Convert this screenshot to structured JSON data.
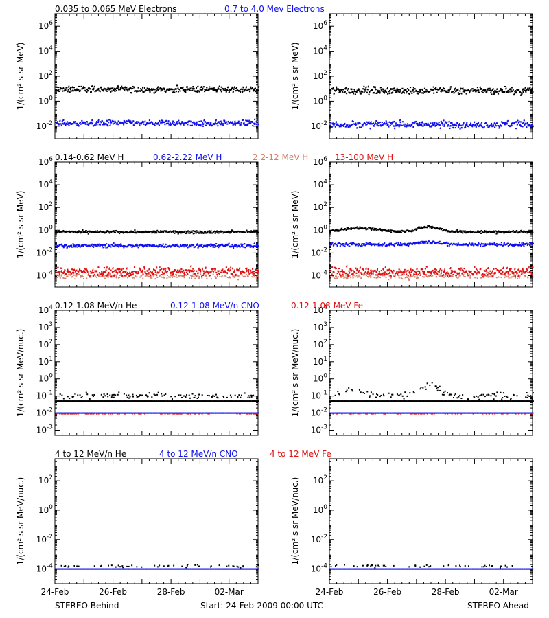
{
  "colors": {
    "black": "#000000",
    "blue": "#1010ee",
    "salmon": "#d4826a",
    "red": "#e01010"
  },
  "panels": [
    {
      "legend": [
        {
          "text": "0.035 to 0.065 MeV Electrons",
          "color": "black"
        },
        {
          "text": "0.7 to 4.0 Mev Electrons",
          "color": "blue"
        }
      ],
      "ylabel": "1/(cm² s sr MeV)",
      "ylim_log10": [
        -3,
        7
      ],
      "ytick_exponents": [
        -2,
        0,
        2,
        4,
        6
      ],
      "ytick_labels": [
        "10-2",
        "100",
        "102",
        "104",
        "106"
      ],
      "ytick_style": "superscript"
    },
    {
      "legend": [
        {
          "text": "0.14-0.62 MeV H",
          "color": "black"
        },
        {
          "text": "0.62-2.22 MeV H",
          "color": "blue"
        },
        {
          "text": "2.2-12 MeV H",
          "color": "salmon"
        },
        {
          "text": "13-100 MeV H",
          "color": "red"
        }
      ],
      "ylabel": "1/(cm² s sr MeV)",
      "ylim_log10": [
        -5,
        6
      ],
      "ytick_exponents": [
        -4,
        -2,
        0,
        2,
        4,
        6
      ],
      "ytick_labels": [
        "10-4",
        "10-2",
        "100",
        "102",
        "104",
        "106"
      ],
      "ytick_style": "superscript"
    },
    {
      "legend": [
        {
          "text": "0.12-1.08 MeV/n He",
          "color": "black"
        },
        {
          "text": "0.12-1.08 MeV/n CNO",
          "color": "blue"
        },
        {
          "text": "0.12-1.08 MeV Fe",
          "color": "red"
        }
      ],
      "ylabel": "1/(cm² s sr MeV/nuc.)",
      "ylim_log10": [
        -3.3,
        4
      ],
      "ytick_exponents": [
        -3,
        -2,
        -1,
        0,
        1,
        2,
        3,
        4
      ],
      "ytick_labels": [
        "10-3",
        "10-2",
        "10-1",
        "100",
        "101",
        "102",
        "103",
        "104"
      ],
      "ytick_style": "superscript"
    },
    {
      "legend": [
        {
          "text": "4 to 12 MeV/n He",
          "color": "black"
        },
        {
          "text": "4 to 12 MeV/n CNO",
          "color": "blue"
        },
        {
          "text": "4 to 12 MeV Fe",
          "color": "red"
        }
      ],
      "ylabel": "1/(cm² s sr MeV/nuc.)",
      "ylim_log10": [
        -5,
        3.5
      ],
      "ytick_exponents": [
        -4,
        -2,
        0,
        2
      ],
      "ytick_labels": [
        "10-4",
        "10-2",
        "100",
        "102"
      ],
      "ytick_style": "superscript"
    }
  ],
  "chart_data": {
    "type": "scatter",
    "x_axis": {
      "type": "date",
      "range": [
        "2009-02-24",
        "2009-03-03"
      ],
      "ticks": [
        "24-Feb",
        "26-Feb",
        "28-Feb",
        "02-Mar"
      ],
      "tick_dates": [
        "2009-02-24",
        "2009-02-26",
        "2009-02-28",
        "2009-03-02"
      ]
    },
    "y_scale": "log",
    "columns": [
      "STEREO Behind",
      "STEREO Ahead"
    ],
    "series": [
      {
        "panel": 0,
        "column": 0,
        "color": "black",
        "baseline_log10": 1.0,
        "scatter": 0.12,
        "density": 1.0
      },
      {
        "panel": 0,
        "column": 0,
        "color": "blue",
        "baseline_log10": -1.7,
        "scatter": 0.12,
        "density": 1.0
      },
      {
        "panel": 0,
        "column": 1,
        "color": "black",
        "baseline_log10": 0.9,
        "scatter": 0.14,
        "density": 1.0
      },
      {
        "panel": 0,
        "column": 1,
        "color": "blue",
        "baseline_log10": -1.8,
        "scatter": 0.14,
        "density": 1.0
      },
      {
        "panel": 1,
        "column": 0,
        "color": "black",
        "baseline_log10": -0.1,
        "scatter": 0.06,
        "density": 1.0
      },
      {
        "panel": 1,
        "column": 0,
        "color": "blue",
        "baseline_log10": -1.3,
        "scatter": 0.08,
        "density": 1.0
      },
      {
        "panel": 1,
        "column": 0,
        "color": "salmon",
        "baseline_log10": -4.0,
        "scatter": 0.12,
        "density": 0.6
      },
      {
        "panel": 1,
        "column": 0,
        "color": "red",
        "baseline_log10": -3.6,
        "scatter": 0.18,
        "density": 1.0
      },
      {
        "panel": 1,
        "column": 1,
        "color": "black",
        "baseline_log10": -0.1,
        "scatter": 0.06,
        "density": 1.0,
        "bumps": [
          {
            "day": 1.0,
            "width": 0.9,
            "height": 0.35
          },
          {
            "day": 3.4,
            "width": 0.55,
            "height": 0.45
          }
        ]
      },
      {
        "panel": 1,
        "column": 1,
        "color": "blue",
        "baseline_log10": -1.2,
        "scatter": 0.07,
        "density": 1.0,
        "bumps": [
          {
            "day": 3.4,
            "width": 0.6,
            "height": 0.2
          }
        ]
      },
      {
        "panel": 1,
        "column": 1,
        "color": "salmon",
        "baseline_log10": -4.0,
        "scatter": 0.12,
        "density": 0.6
      },
      {
        "panel": 1,
        "column": 1,
        "color": "red",
        "baseline_log10": -3.6,
        "scatter": 0.18,
        "density": 1.0
      },
      {
        "panel": 2,
        "column": 0,
        "color": "black",
        "baseline_log10": -1.3,
        "scatter": 0.0,
        "density": 1.0,
        "style": "line"
      },
      {
        "panel": 2,
        "column": 0,
        "color": "black",
        "baseline_log10": -0.95,
        "scatter": 0.08,
        "density": 0.35
      },
      {
        "panel": 2,
        "column": 0,
        "color": "blue",
        "baseline_log10": -2.0,
        "scatter": 0.0,
        "density": 1.0,
        "style": "line"
      },
      {
        "panel": 2,
        "column": 0,
        "color": "red",
        "baseline_log10": -2.0,
        "scatter": 0.0,
        "density": 0.25
      },
      {
        "panel": 2,
        "column": 1,
        "color": "black",
        "baseline_log10": -1.3,
        "scatter": 0.0,
        "density": 1.0,
        "style": "line"
      },
      {
        "panel": 2,
        "column": 1,
        "color": "black",
        "baseline_log10": -0.95,
        "scatter": 0.1,
        "density": 0.4,
        "bumps": [
          {
            "day": 0.8,
            "width": 0.5,
            "height": 0.35
          },
          {
            "day": 3.4,
            "width": 0.4,
            "height": 0.7
          }
        ]
      },
      {
        "panel": 2,
        "column": 1,
        "color": "blue",
        "baseline_log10": -2.0,
        "scatter": 0.0,
        "density": 1.0,
        "style": "line"
      },
      {
        "panel": 2,
        "column": 1,
        "color": "red",
        "baseline_log10": -2.0,
        "scatter": 0.0,
        "density": 0.2
      },
      {
        "panel": 3,
        "column": 0,
        "color": "blue",
        "baseline_log10": -4.0,
        "scatter": 0.0,
        "density": 1.0,
        "style": "line"
      },
      {
        "panel": 3,
        "column": 0,
        "color": "black",
        "baseline_log10": -3.75,
        "scatter": 0.05,
        "density": 0.18
      },
      {
        "panel": 3,
        "column": 1,
        "color": "blue",
        "baseline_log10": -4.0,
        "scatter": 0.0,
        "density": 1.0,
        "style": "line"
      },
      {
        "panel": 3,
        "column": 1,
        "color": "black",
        "baseline_log10": -3.75,
        "scatter": 0.05,
        "density": 0.14
      }
    ]
  },
  "footer": {
    "left": "STEREO Behind",
    "center": "Start: 24-Feb-2009 00:00 UTC",
    "right": "STEREO Ahead"
  }
}
